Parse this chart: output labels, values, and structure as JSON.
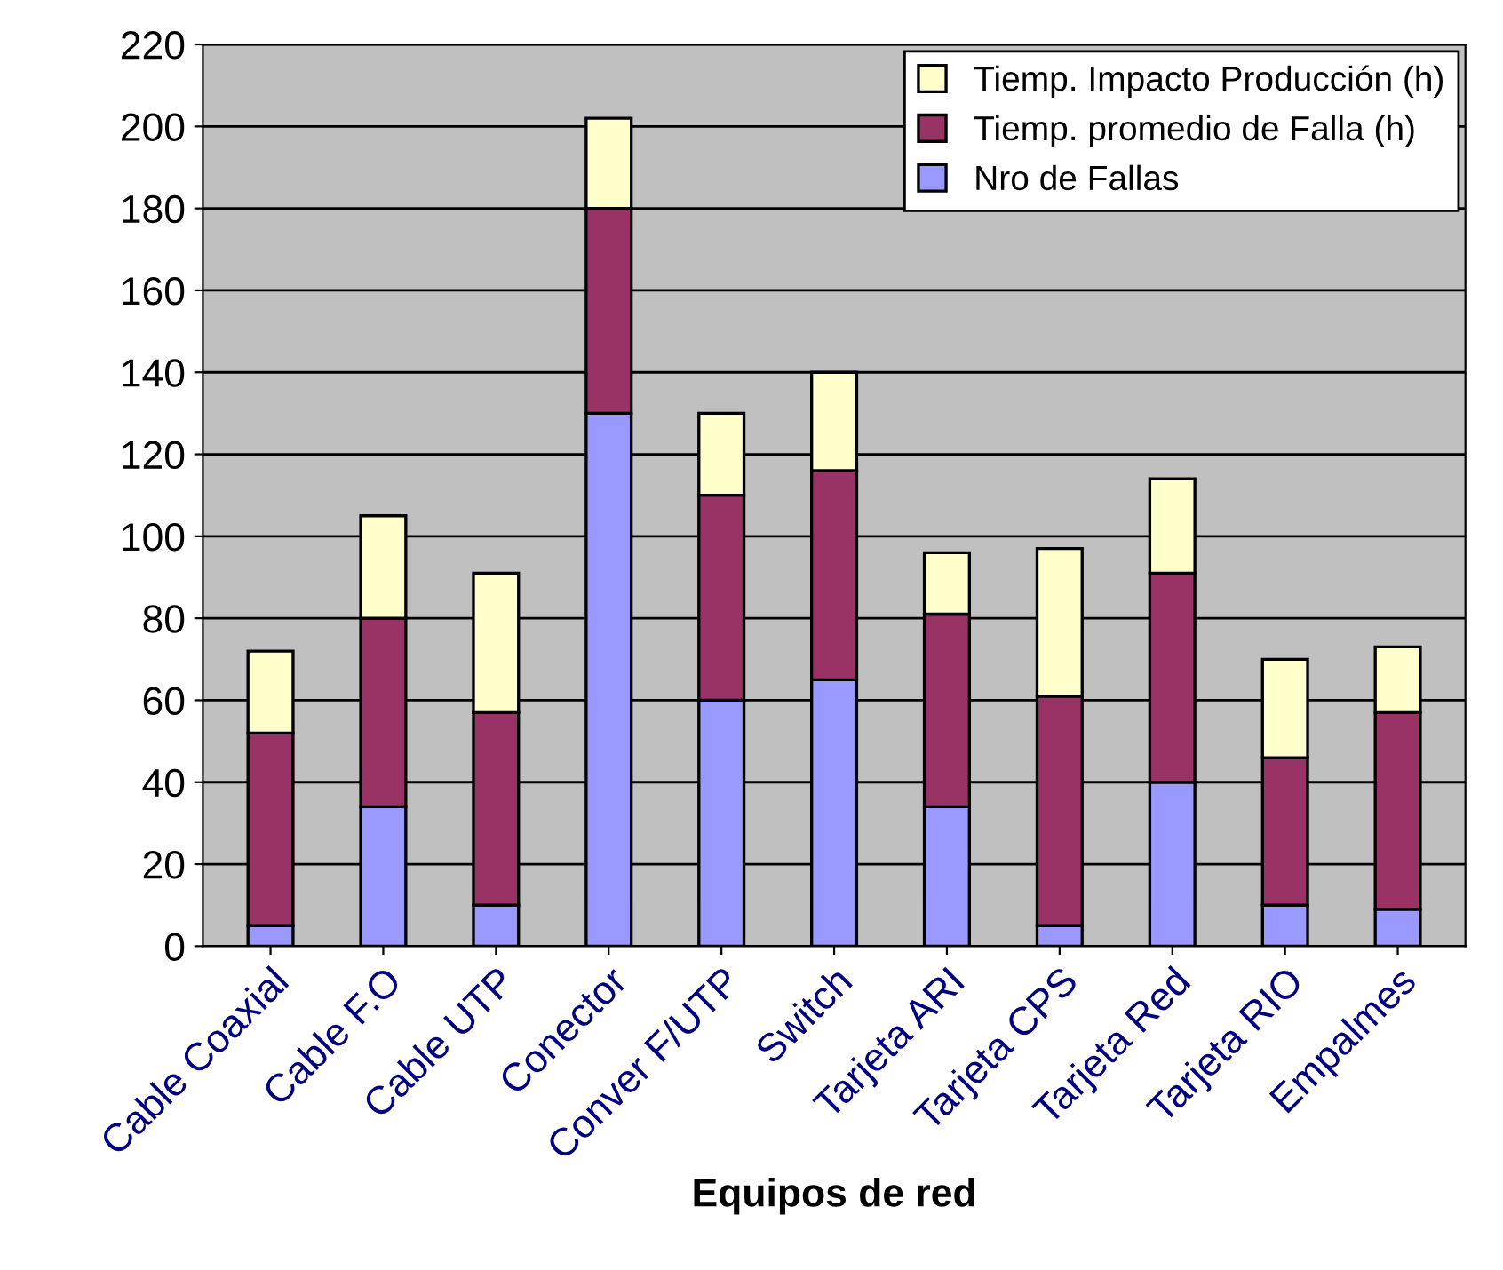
{
  "chart_data": {
    "type": "bar",
    "stacked": true,
    "xlabel": "Equipos de red",
    "categories": [
      "Cable Coaxial",
      "Cable F.O",
      "Cable UTP",
      "Conector",
      "Conver F/UTP",
      "Switch",
      "Tarjeta ARI",
      "Tarjeta CPS",
      "Tarjeta Red",
      "Tarjeta RIO",
      "Empalmes"
    ],
    "series": [
      {
        "name": "Nro de Fallas",
        "color": "#9999ff",
        "values": [
          5,
          34,
          10,
          130,
          60,
          65,
          34,
          5,
          40,
          10,
          9
        ]
      },
      {
        "name": "Tiemp. promedio de Falla (h)",
        "color": "#993366",
        "values": [
          47,
          46,
          47,
          50,
          50,
          51,
          47,
          56,
          51,
          36,
          48
        ]
      },
      {
        "name": "Tiemp. Impacto Producción (h)",
        "color": "#ffffcc",
        "values": [
          20,
          25,
          34,
          22,
          20,
          24,
          15,
          36,
          23,
          24,
          16
        ]
      }
    ],
    "ylim": [
      0,
      220
    ],
    "yticks": [
      0,
      20,
      40,
      60,
      80,
      100,
      120,
      140,
      160,
      180,
      200,
      220
    ],
    "grid": "y",
    "legend": "top right"
  }
}
